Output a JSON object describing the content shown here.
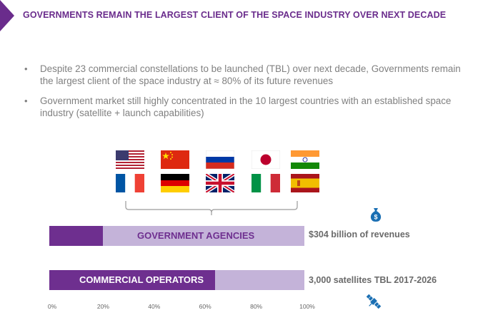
{
  "header": {
    "title": "GOVERNMENTS REMAIN THE LARGEST CLIENT OF THE SPACE INDUSTRY OVER NEXT DECADE",
    "accent_color": "#6a2c8c"
  },
  "bullets": [
    {
      "marker": "•",
      "text": "Despite 23 commercial constellations to be launched (TBL) over next decade, Governments remain the largest client of the space industry at ≈ 80% of its future revenues"
    },
    {
      "marker": "•",
      "text": "Government market still highly concentrated in the 10 largest countries with an established space industry (satellite + launch capabilities)"
    }
  ],
  "flags": [
    "usa-flag",
    "china-flag",
    "russia-flag",
    "japan-flag",
    "india-flag",
    "france-flag",
    "germany-flag",
    "uk-flag",
    "italy-flag",
    "spain-flag"
  ],
  "chart_data": {
    "type": "bar",
    "orientation": "horizontal",
    "categories": [
      "GOVERNMENT AGENCIES",
      "COMMERCIAL OPERATORS"
    ],
    "values": [
      21,
      65
    ],
    "side_labels": [
      "$304 billion of revenues",
      "3,000 satellites TBL 2017-2026"
    ],
    "xlim": [
      0,
      100
    ],
    "ticks": [
      "0%",
      "20%",
      "40%",
      "60%",
      "80%",
      "100%"
    ],
    "colors": {
      "fill": "#6e2f8f",
      "track": "#c4b3d9"
    },
    "icons": [
      "money-bag-icon",
      "satellite-icon"
    ]
  }
}
